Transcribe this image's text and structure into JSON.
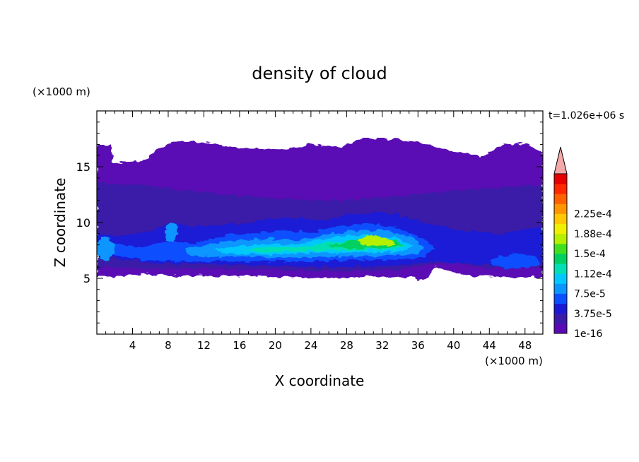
{
  "chart_data": {
    "type": "heatmap",
    "title": "density of cloud",
    "xlabel": "X coordinate",
    "ylabel": "Z coordinate",
    "x_unit": "(×1000 m)",
    "y_unit": "(×1000 m)",
    "time_label": "t=1.026e+06 s",
    "xlim": [
      0,
      50
    ],
    "ylim": [
      0,
      20
    ],
    "x_ticks": [
      "4",
      "8",
      "12",
      "16",
      "20",
      "24",
      "28",
      "32",
      "36",
      "40",
      "44",
      "48"
    ],
    "y_ticks": [
      "5",
      "10",
      "15"
    ],
    "colorbar": {
      "levels": [
        "1e-16",
        "3.75e-5",
        "7.5e-5",
        "1.12e-4",
        "1.5e-4",
        "1.88e-4",
        "2.25e-4"
      ],
      "colors": [
        "#5a0ab4",
        "#3a1aa8",
        "#1a1ad6",
        "#0a50ff",
        "#0a96ff",
        "#00c8ff",
        "#00e0b4",
        "#00d060",
        "#40e020",
        "#b4f000",
        "#f0f000",
        "#ffc800",
        "#ff9600",
        "#ff6000",
        "#ff2800",
        "#e60000"
      ],
      "extend_color": "#f4a8a8"
    },
    "field_description_levels": {
      "cloud_base_km": 5.4,
      "cloud_top_km": 17.5,
      "max_density": 0.00016
    }
  }
}
